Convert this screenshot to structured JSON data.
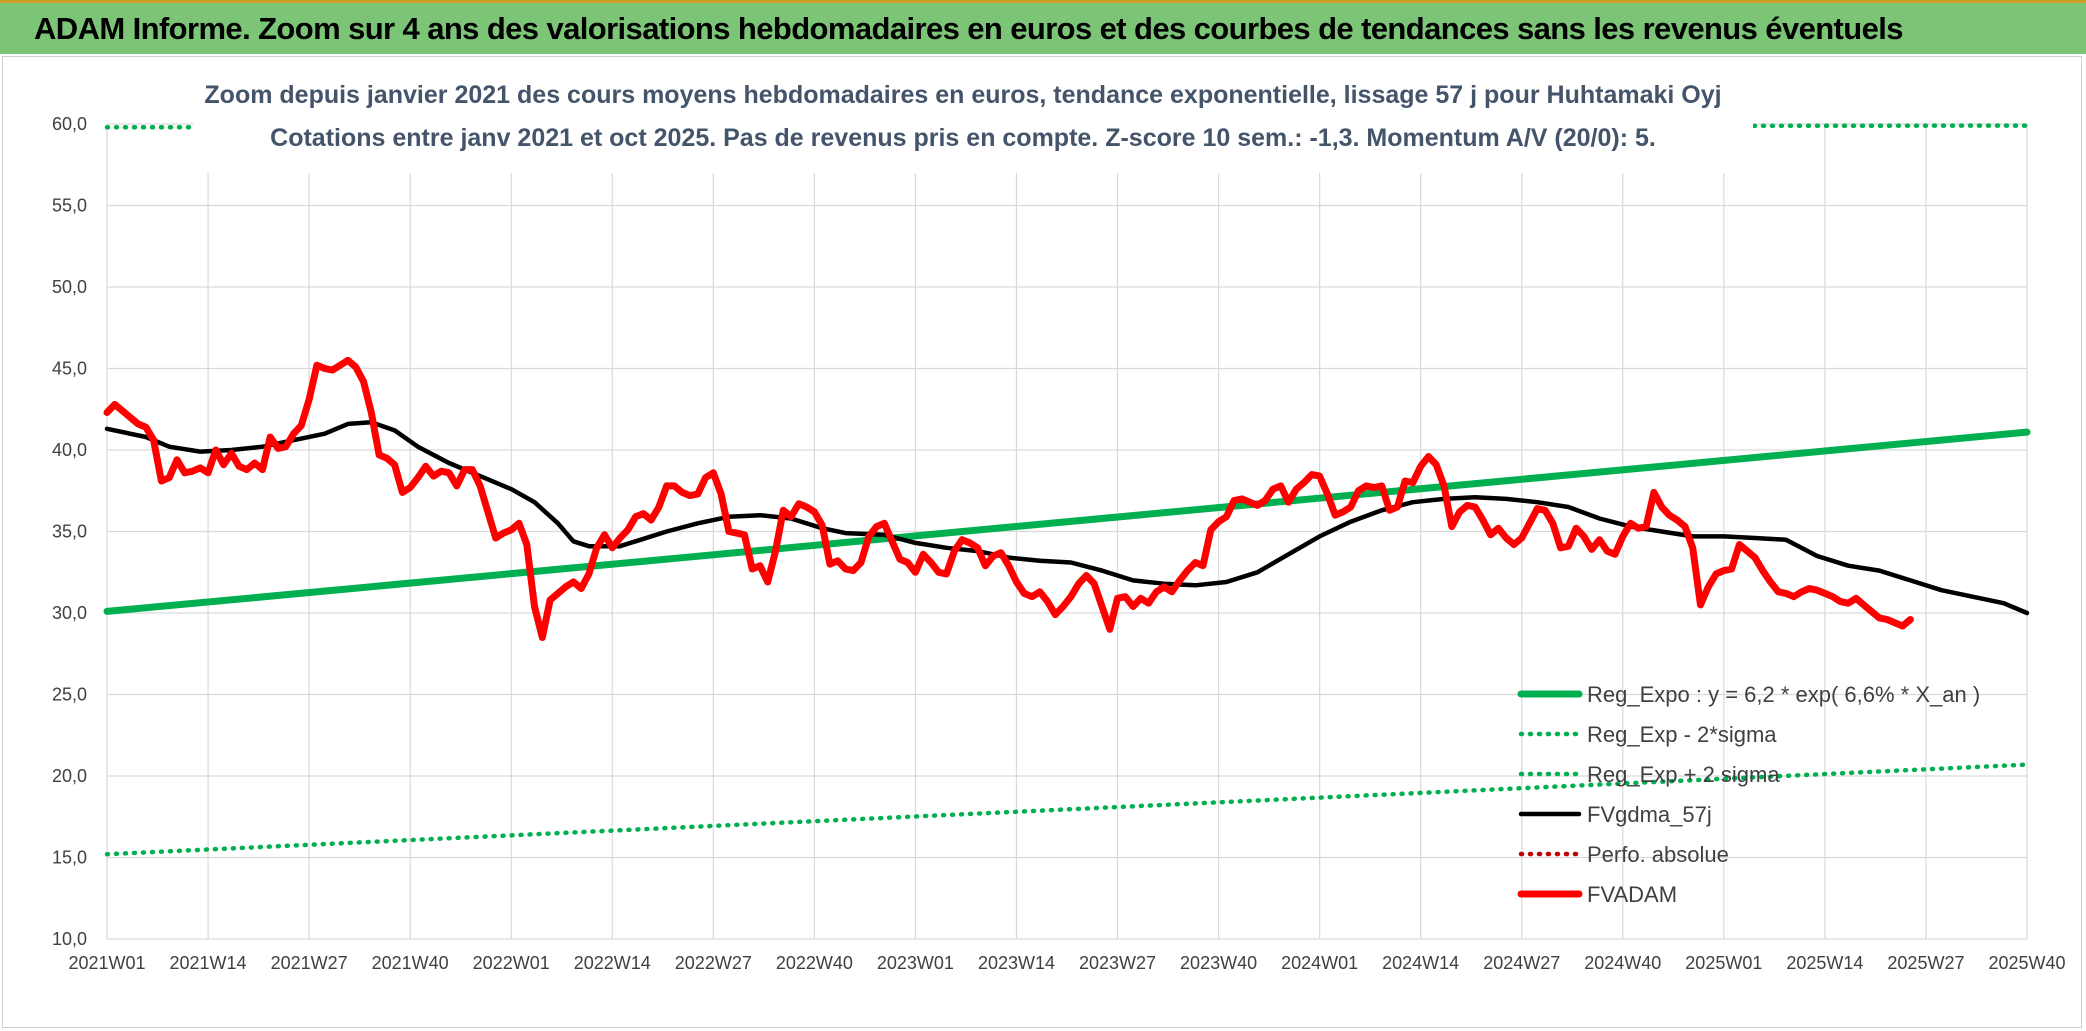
{
  "header": {
    "title": "ADAM Informe. Zoom sur 4 ans des valorisations hebdomadaires en euros et des courbes de tendances sans les revenus éventuels"
  },
  "colors": {
    "banner": "#7cc576",
    "trend": "#00b050",
    "smooth": "#000000",
    "price": "#ff0000",
    "grid": "#d9d9d9",
    "title": "#44546a"
  },
  "chart_data": {
    "type": "line",
    "title": "Zoom depuis janvier 2021 des cours moyens hebdomadaires en euros, tendance exponentielle, lissage 57 j pour Huhtamaki Oyj",
    "subtitle": "Cotations entre janv 2021 et oct 2025. Pas de revenus pris en compte. Z-score 10 sem.: -1,3. Momentum A/V (20/0): 5.",
    "xlabel": "",
    "ylabel": "",
    "ylim": [
      10,
      60
    ],
    "y_ticks": [
      "10,0",
      "15,0",
      "20,0",
      "25,0",
      "30,0",
      "35,0",
      "40,0",
      "45,0",
      "50,0",
      "55,0",
      "60,0"
    ],
    "x_ticks": [
      "2021W01",
      "2021W14",
      "2021W27",
      "2021W40",
      "2022W01",
      "2022W14",
      "2022W27",
      "2022W40",
      "2023W01",
      "2023W14",
      "2023W27",
      "2023W40",
      "2024W01",
      "2024W14",
      "2024W27",
      "2024W40",
      "2025W01",
      "2025W14",
      "2025W27",
      "2025W40"
    ],
    "x_range_weeks": [
      0,
      247
    ],
    "grid": true,
    "legend_position": "bottom-right",
    "series": [
      {
        "name": "Reg_Expo : y = 6,2 * exp( 6,6% *  X_an )",
        "style": "solid",
        "color": "#00b050",
        "points": [
          [
            0,
            30.1
          ],
          [
            247,
            41.1
          ]
        ]
      },
      {
        "name": "Reg_Exp - 2*sigma",
        "style": "dotted",
        "color": "#00b050",
        "points": [
          [
            0,
            15.2
          ],
          [
            247,
            20.7
          ]
        ]
      },
      {
        "name": "Reg_Exp + 2 sigma",
        "style": "dotted",
        "color": "#00b050",
        "points": [
          [
            0,
            59.8
          ],
          [
            247,
            59.9
          ]
        ]
      },
      {
        "name": "FVgdma_57j",
        "style": "solid",
        "color": "#000000",
        "points": [
          [
            0,
            41.3
          ],
          [
            5,
            40.8
          ],
          [
            8,
            40.2
          ],
          [
            12,
            39.9
          ],
          [
            16,
            40.0
          ],
          [
            20,
            40.2
          ],
          [
            24,
            40.6
          ],
          [
            28,
            41.0
          ],
          [
            31,
            41.6
          ],
          [
            34,
            41.7
          ],
          [
            37,
            41.2
          ],
          [
            40,
            40.2
          ],
          [
            44,
            39.2
          ],
          [
            48,
            38.4
          ],
          [
            52,
            37.6
          ],
          [
            55,
            36.8
          ],
          [
            58,
            35.5
          ],
          [
            60,
            34.4
          ],
          [
            62,
            34.1
          ],
          [
            66,
            34.1
          ],
          [
            68,
            34.4
          ],
          [
            72,
            35.0
          ],
          [
            76,
            35.5
          ],
          [
            80,
            35.9
          ],
          [
            84,
            36.0
          ],
          [
            88,
            35.8
          ],
          [
            92,
            35.2
          ],
          [
            95,
            34.9
          ],
          [
            100,
            34.8
          ],
          [
            104,
            34.3
          ],
          [
            108,
            34.0
          ],
          [
            112,
            33.8
          ],
          [
            116,
            33.4
          ],
          [
            120,
            33.2
          ],
          [
            124,
            33.1
          ],
          [
            128,
            32.6
          ],
          [
            132,
            32.0
          ],
          [
            136,
            31.8
          ],
          [
            140,
            31.7
          ],
          [
            144,
            31.9
          ],
          [
            148,
            32.5
          ],
          [
            152,
            33.6
          ],
          [
            156,
            34.7
          ],
          [
            160,
            35.6
          ],
          [
            164,
            36.3
          ],
          [
            168,
            36.8
          ],
          [
            172,
            37.0
          ],
          [
            176,
            37.1
          ],
          [
            180,
            37.0
          ],
          [
            184,
            36.8
          ],
          [
            188,
            36.5
          ],
          [
            192,
            35.8
          ],
          [
            196,
            35.3
          ],
          [
            200,
            35.0
          ],
          [
            204,
            34.7
          ],
          [
            208,
            34.7
          ],
          [
            212,
            34.6
          ],
          [
            216,
            34.5
          ],
          [
            220,
            33.5
          ],
          [
            224,
            32.9
          ],
          [
            228,
            32.6
          ],
          [
            232,
            32.0
          ],
          [
            236,
            31.4
          ],
          [
            240,
            31.0
          ],
          [
            244,
            30.6
          ],
          [
            247,
            30.0
          ]
        ]
      },
      {
        "name": "Perfo. absolue",
        "style": "dotted",
        "color": "#c00000",
        "points": []
      },
      {
        "name": "FVADAM",
        "style": "solid",
        "color": "#ff0000",
        "points": [
          [
            0,
            42.3
          ],
          [
            1,
            42.8
          ],
          [
            3,
            42.0
          ],
          [
            4,
            41.6
          ],
          [
            5,
            41.4
          ],
          [
            6,
            40.6
          ],
          [
            7,
            38.1
          ],
          [
            8,
            38.3
          ],
          [
            9,
            39.4
          ],
          [
            10,
            38.6
          ],
          [
            11,
            38.7
          ],
          [
            12,
            38.9
          ],
          [
            13,
            38.6
          ],
          [
            14,
            40.0
          ],
          [
            15,
            39.1
          ],
          [
            16,
            39.8
          ],
          [
            17,
            39.0
          ],
          [
            18,
            38.8
          ],
          [
            19,
            39.2
          ],
          [
            20,
            38.8
          ],
          [
            21,
            40.8
          ],
          [
            22,
            40.1
          ],
          [
            23,
            40.2
          ],
          [
            24,
            41.0
          ],
          [
            25,
            41.5
          ],
          [
            26,
            43.1
          ],
          [
            27,
            45.2
          ],
          [
            28,
            45.0
          ],
          [
            29,
            44.9
          ],
          [
            30,
            45.2
          ],
          [
            31,
            45.5
          ],
          [
            32,
            45.1
          ],
          [
            33,
            44.2
          ],
          [
            34,
            42.3
          ],
          [
            35,
            39.7
          ],
          [
            36,
            39.5
          ],
          [
            37,
            39.1
          ],
          [
            38,
            37.4
          ],
          [
            39,
            37.7
          ],
          [
            40,
            38.3
          ],
          [
            41,
            39.0
          ],
          [
            42,
            38.4
          ],
          [
            43,
            38.7
          ],
          [
            44,
            38.6
          ],
          [
            45,
            37.8
          ],
          [
            46,
            38.8
          ],
          [
            47,
            38.8
          ],
          [
            48,
            37.8
          ],
          [
            49,
            36.2
          ],
          [
            50,
            34.6
          ],
          [
            51,
            34.9
          ],
          [
            52,
            35.1
          ],
          [
            53,
            35.5
          ],
          [
            54,
            34.2
          ],
          [
            55,
            30.4
          ],
          [
            56,
            28.5
          ],
          [
            57,
            30.8
          ],
          [
            58,
            31.2
          ],
          [
            59,
            31.6
          ],
          [
            60,
            31.9
          ],
          [
            61,
            31.5
          ],
          [
            62,
            32.4
          ],
          [
            63,
            34.0
          ],
          [
            64,
            34.8
          ],
          [
            65,
            34.0
          ],
          [
            66,
            34.6
          ],
          [
            67,
            35.1
          ],
          [
            68,
            35.9
          ],
          [
            69,
            36.1
          ],
          [
            70,
            35.7
          ],
          [
            71,
            36.5
          ],
          [
            72,
            37.8
          ],
          [
            73,
            37.8
          ],
          [
            74,
            37.4
          ],
          [
            75,
            37.2
          ],
          [
            76,
            37.3
          ],
          [
            77,
            38.3
          ],
          [
            78,
            38.6
          ],
          [
            79,
            37.3
          ],
          [
            80,
            35.0
          ],
          [
            81,
            34.9
          ],
          [
            82,
            34.8
          ],
          [
            83,
            32.7
          ],
          [
            84,
            32.9
          ],
          [
            85,
            31.9
          ],
          [
            86,
            33.8
          ],
          [
            87,
            36.3
          ],
          [
            88,
            35.9
          ],
          [
            89,
            36.7
          ],
          [
            90,
            36.5
          ],
          [
            91,
            36.2
          ],
          [
            92,
            35.4
          ],
          [
            93,
            33.0
          ],
          [
            94,
            33.2
          ],
          [
            95,
            32.7
          ],
          [
            96,
            32.6
          ],
          [
            97,
            33.1
          ],
          [
            98,
            34.7
          ],
          [
            99,
            35.3
          ],
          [
            100,
            35.5
          ],
          [
            101,
            34.4
          ],
          [
            102,
            33.3
          ],
          [
            103,
            33.1
          ],
          [
            104,
            32.5
          ],
          [
            105,
            33.6
          ],
          [
            106,
            33.1
          ],
          [
            107,
            32.5
          ],
          [
            108,
            32.4
          ],
          [
            109,
            33.8
          ],
          [
            110,
            34.5
          ],
          [
            111,
            34.3
          ],
          [
            112,
            34.0
          ],
          [
            113,
            32.9
          ],
          [
            114,
            33.5
          ],
          [
            115,
            33.7
          ],
          [
            116,
            32.9
          ],
          [
            117,
            31.9
          ],
          [
            118,
            31.2
          ],
          [
            119,
            31.0
          ],
          [
            120,
            31.3
          ],
          [
            121,
            30.7
          ],
          [
            122,
            29.9
          ],
          [
            123,
            30.4
          ],
          [
            124,
            31.0
          ],
          [
            125,
            31.8
          ],
          [
            126,
            32.3
          ],
          [
            127,
            31.8
          ],
          [
            128,
            30.4
          ],
          [
            129,
            29.0
          ],
          [
            130,
            30.9
          ],
          [
            131,
            31.0
          ],
          [
            132,
            30.4
          ],
          [
            133,
            30.9
          ],
          [
            134,
            30.6
          ],
          [
            135,
            31.3
          ],
          [
            136,
            31.6
          ],
          [
            137,
            31.3
          ],
          [
            138,
            32.0
          ],
          [
            139,
            32.6
          ],
          [
            140,
            33.1
          ],
          [
            141,
            32.9
          ],
          [
            142,
            35.1
          ],
          [
            143,
            35.6
          ],
          [
            144,
            35.9
          ],
          [
            145,
            36.9
          ],
          [
            146,
            37.0
          ],
          [
            147,
            36.8
          ],
          [
            148,
            36.6
          ],
          [
            149,
            36.9
          ],
          [
            150,
            37.6
          ],
          [
            151,
            37.8
          ],
          [
            152,
            36.8
          ],
          [
            153,
            37.6
          ],
          [
            154,
            38.0
          ],
          [
            155,
            38.5
          ],
          [
            156,
            38.4
          ],
          [
            157,
            37.3
          ],
          [
            158,
            36.0
          ],
          [
            159,
            36.2
          ],
          [
            160,
            36.5
          ],
          [
            161,
            37.5
          ],
          [
            162,
            37.8
          ],
          [
            163,
            37.7
          ],
          [
            164,
            37.8
          ],
          [
            165,
            36.3
          ],
          [
            166,
            36.5
          ],
          [
            167,
            38.1
          ],
          [
            168,
            38.0
          ],
          [
            169,
            39.0
          ],
          [
            170,
            39.6
          ],
          [
            171,
            39.1
          ],
          [
            172,
            37.8
          ],
          [
            173,
            35.3
          ],
          [
            174,
            36.2
          ],
          [
            175,
            36.6
          ],
          [
            176,
            36.5
          ],
          [
            177,
            35.7
          ],
          [
            178,
            34.8
          ],
          [
            179,
            35.2
          ],
          [
            180,
            34.6
          ],
          [
            181,
            34.2
          ],
          [
            182,
            34.6
          ],
          [
            183,
            35.5
          ],
          [
            184,
            36.4
          ],
          [
            185,
            36.3
          ],
          [
            186,
            35.5
          ],
          [
            187,
            34.0
          ],
          [
            188,
            34.1
          ],
          [
            189,
            35.2
          ],
          [
            190,
            34.7
          ],
          [
            191,
            33.9
          ],
          [
            192,
            34.5
          ],
          [
            193,
            33.8
          ],
          [
            194,
            33.6
          ],
          [
            195,
            34.7
          ],
          [
            196,
            35.5
          ],
          [
            197,
            35.2
          ],
          [
            198,
            35.3
          ],
          [
            199,
            37.4
          ],
          [
            200,
            36.5
          ],
          [
            201,
            36.0
          ],
          [
            202,
            35.7
          ],
          [
            203,
            35.3
          ],
          [
            204,
            34.0
          ],
          [
            205,
            30.5
          ],
          [
            206,
            31.6
          ],
          [
            207,
            32.4
          ],
          [
            208,
            32.6
          ],
          [
            209,
            32.7
          ],
          [
            210,
            34.2
          ],
          [
            211,
            33.8
          ],
          [
            212,
            33.4
          ],
          [
            213,
            32.6
          ],
          [
            214,
            31.9
          ],
          [
            215,
            31.3
          ],
          [
            216,
            31.2
          ],
          [
            217,
            31.0
          ],
          [
            218,
            31.3
          ],
          [
            219,
            31.5
          ],
          [
            220,
            31.4
          ],
          [
            221,
            31.2
          ],
          [
            222,
            31.0
          ],
          [
            223,
            30.7
          ],
          [
            224,
            30.6
          ],
          [
            225,
            30.9
          ],
          [
            226,
            30.5
          ],
          [
            227,
            30.1
          ],
          [
            228,
            29.7
          ],
          [
            229,
            29.6
          ],
          [
            230,
            29.4
          ],
          [
            231,
            29.2
          ],
          [
            232,
            29.6
          ]
        ]
      }
    ]
  }
}
